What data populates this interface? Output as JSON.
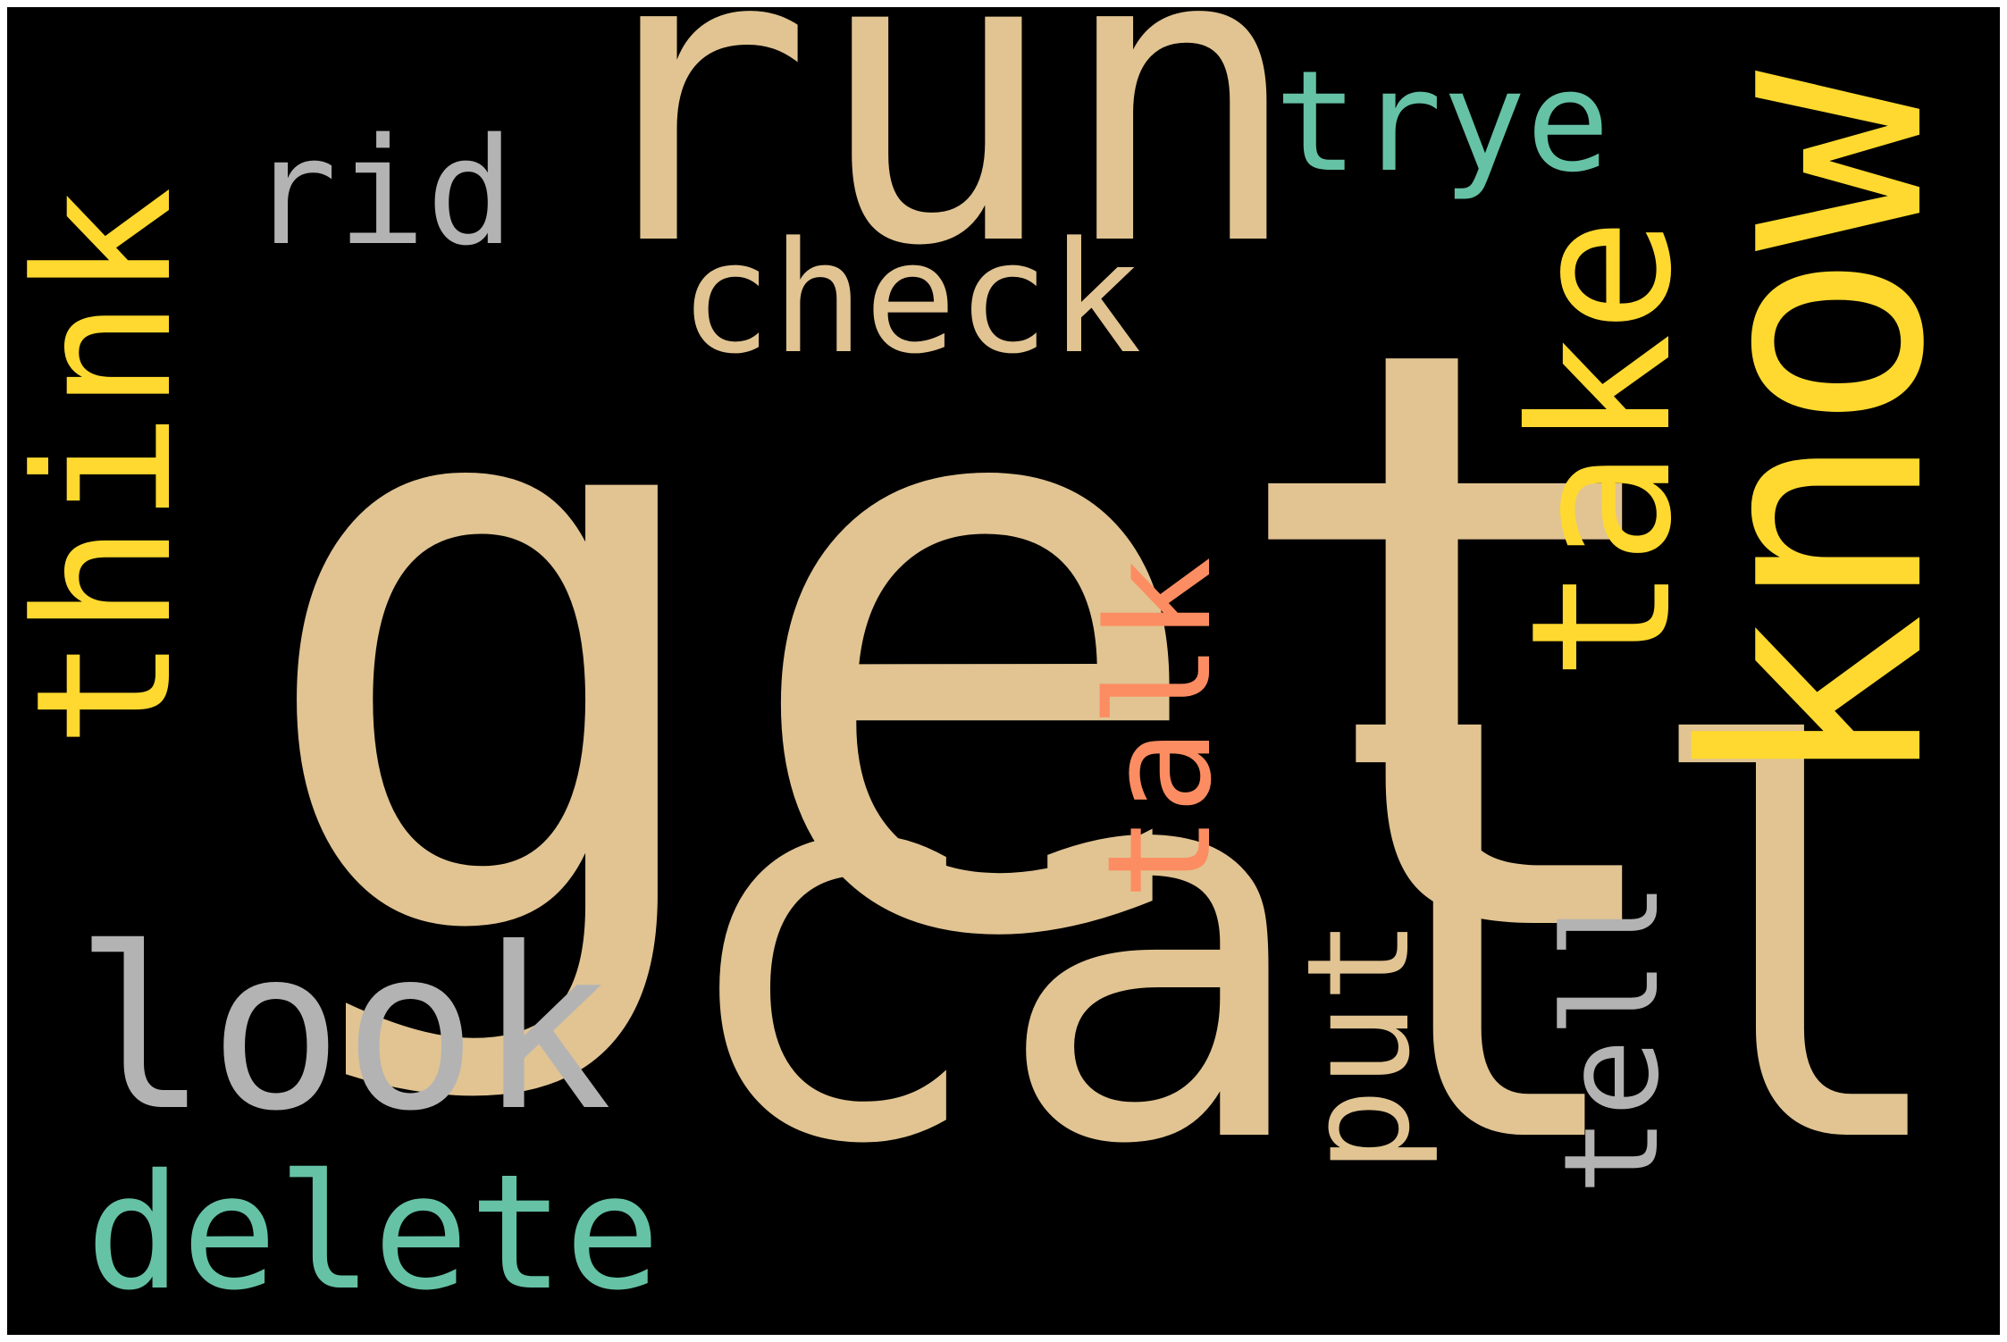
{
  "colors": {
    "background": "#000000",
    "tan": "#E1C492",
    "yellow": "#FFD92F",
    "teal": "#66C2A5",
    "gray": "#B3B3B3",
    "orange": "#FC8D62"
  },
  "words": {
    "get": "get",
    "call": "call",
    "run": "run",
    "know": "know",
    "take": "take",
    "think": "think",
    "look": "look",
    "delete": "delete",
    "check": "check",
    "rid": "rid",
    "trye": "trye",
    "talk": "talk",
    "tell": "tell",
    "put": "put"
  }
}
